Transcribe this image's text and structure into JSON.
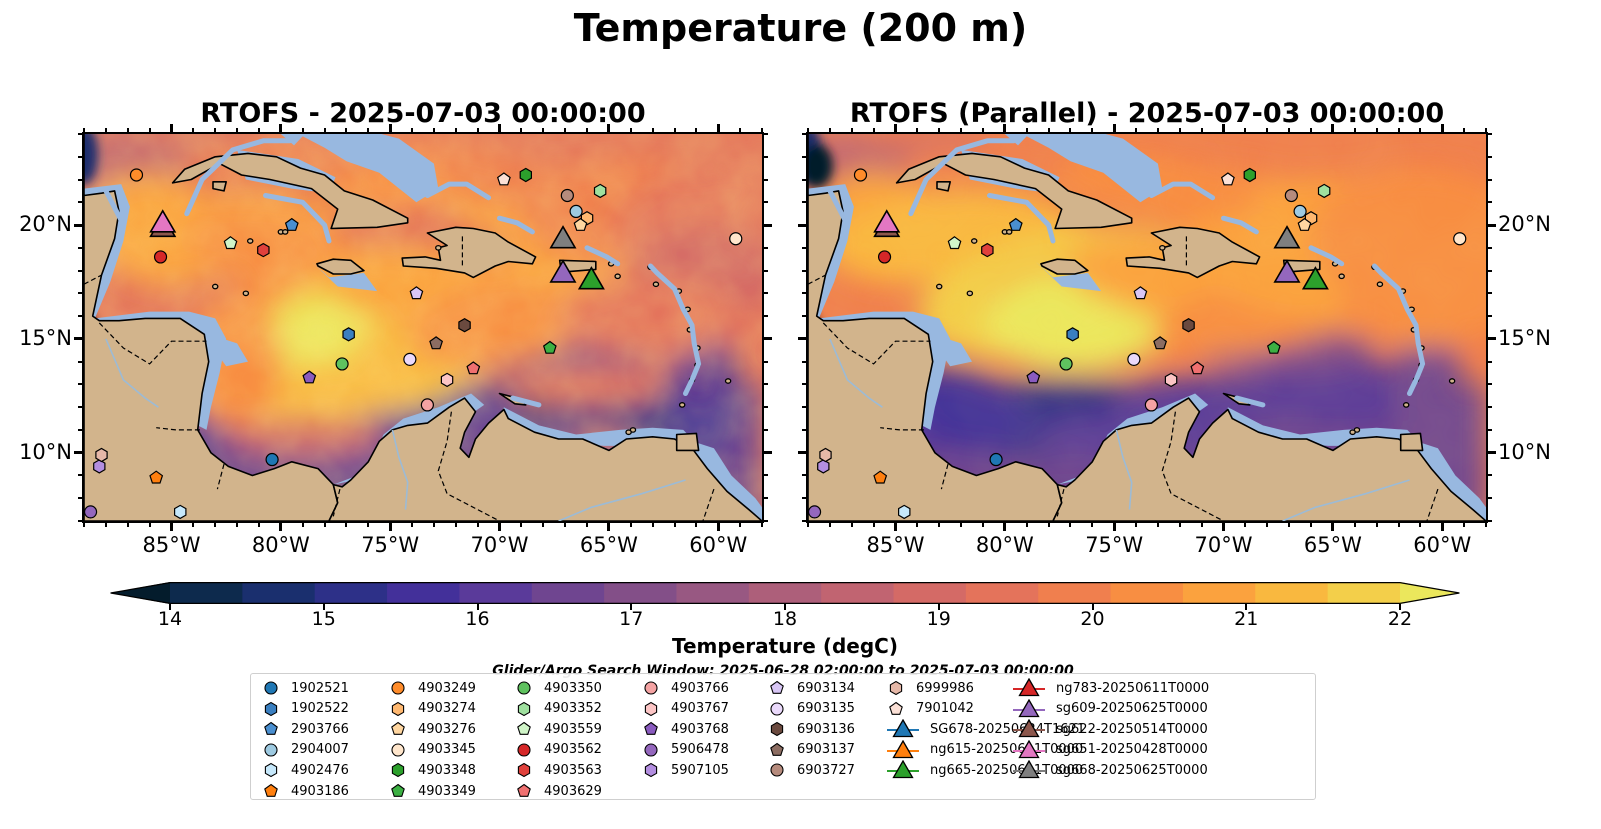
{
  "figure": {
    "title": "Temperature (200 m)",
    "panels": [
      {
        "title": "RTOFS - 2025-07-03 00:00:00"
      },
      {
        "title": "RTOFS (Parallel) - 2025-07-03 00:00:00"
      }
    ],
    "axes": {
      "lon_ticks": [
        "85°W",
        "80°W",
        "75°W",
        "70°W",
        "65°W",
        "60°W"
      ],
      "lon_values": [
        -85,
        -80,
        -75,
        -70,
        -65,
        -60
      ],
      "lat_ticks": [
        "20°N",
        "15°N",
        "10°N"
      ],
      "lat_values": [
        20,
        15,
        10
      ],
      "lon_range": [
        -89,
        -58
      ],
      "lat_range": [
        7,
        24
      ]
    },
    "colorbar": {
      "label": "Temperature (degC)",
      "ticks": [
        "14",
        "15",
        "16",
        "17",
        "18",
        "19",
        "20",
        "21",
        "22"
      ],
      "range": [
        14,
        22
      ],
      "extend": "both",
      "colormap": [
        "#041c2c",
        "#0d2a4d",
        "#1a2f6e",
        "#2d3088",
        "#43309a",
        "#5a3a9a",
        "#6f4590",
        "#834f88",
        "#985882",
        "#ad5f7a",
        "#c16471",
        "#d46a66",
        "#e4735b",
        "#f07f4e",
        "#f88e42",
        "#fba23e",
        "#f9b83f",
        "#f3cf4a",
        "#ebe75c"
      ],
      "land_color": "#d2b48c",
      "shallow_color": "#98b8e0"
    },
    "search_window": "Glider/Argo Search Window: 2025-06-28 02:00:00 to 2025-07-03 00:00:00"
  },
  "legend": [
    {
      "label": "1902521",
      "shape": "circle",
      "color": "#1f77b4"
    },
    {
      "label": "1902522",
      "shape": "hexagon",
      "color": "#3a7fc0"
    },
    {
      "label": "2903766",
      "shape": "pentagon",
      "color": "#4a8fd0"
    },
    {
      "label": "2904007",
      "shape": "circle",
      "color": "#9ecae1"
    },
    {
      "label": "4902476",
      "shape": "hexagon",
      "color": "#c6e8fb"
    },
    {
      "label": "4903186",
      "shape": "pentagon",
      "color": "#ff7f0e"
    },
    {
      "label": "4903249",
      "shape": "circle",
      "color": "#ff8c2a"
    },
    {
      "label": "4903274",
      "shape": "hexagon",
      "color": "#ffb870"
    },
    {
      "label": "4903276",
      "shape": "pentagon",
      "color": "#ffd6a0"
    },
    {
      "label": "4903345",
      "shape": "circle",
      "color": "#ffe6cc"
    },
    {
      "label": "4903348",
      "shape": "hexagon",
      "color": "#2ca02c"
    },
    {
      "label": "4903349",
      "shape": "pentagon",
      "color": "#3cb043"
    },
    {
      "label": "4903350",
      "shape": "circle",
      "color": "#5fc25f"
    },
    {
      "label": "4903352",
      "shape": "hexagon",
      "color": "#9fe09f"
    },
    {
      "label": "4903559",
      "shape": "pentagon",
      "color": "#d0f5c8"
    },
    {
      "label": "4903562",
      "shape": "circle",
      "color": "#d62728"
    },
    {
      "label": "4903563",
      "shape": "hexagon",
      "color": "#e0413c"
    },
    {
      "label": "4903629",
      "shape": "pentagon",
      "color": "#f07070"
    },
    {
      "label": "4903766",
      "shape": "circle",
      "color": "#f4a3a3"
    },
    {
      "label": "4903767",
      "shape": "hexagon",
      "color": "#fcc5c5"
    },
    {
      "label": "4903768",
      "shape": "pentagon",
      "color": "#8a5bbf"
    },
    {
      "label": "5906478",
      "shape": "circle",
      "color": "#9467bd"
    },
    {
      "label": "5907105",
      "shape": "hexagon",
      "color": "#b38ee0"
    },
    {
      "label": "6903134",
      "shape": "pentagon",
      "color": "#d8c6f5"
    },
    {
      "label": "6903135",
      "shape": "circle",
      "color": "#ead9fb"
    },
    {
      "label": "6903136",
      "shape": "hexagon",
      "color": "#6b4a3f"
    },
    {
      "label": "6903137",
      "shape": "pentagon",
      "color": "#8c6d62"
    },
    {
      "label": "6903727",
      "shape": "circle",
      "color": "#b68b7d"
    },
    {
      "label": "6999986",
      "shape": "hexagon",
      "color": "#e6b8a8"
    },
    {
      "label": "7901042",
      "shape": "pentagon",
      "color": "#fbe0d6"
    },
    {
      "label": "SG678-20250624T1621",
      "shape": "triangle",
      "color": "#1f77b4"
    },
    {
      "label": "ng615-20250611T0000",
      "shape": "triangle",
      "color": "#ff7f0e"
    },
    {
      "label": "ng665-20250611T0000",
      "shape": "triangle",
      "color": "#2ca02c"
    },
    {
      "label": "ng783-20250611T0000",
      "shape": "triangle",
      "color": "#d62728"
    },
    {
      "label": "sg609-20250625T0000",
      "shape": "triangle",
      "color": "#9467bd"
    },
    {
      "label": "sg622-20250514T0000",
      "shape": "triangle",
      "color": "#8c564b"
    },
    {
      "label": "sg651-20250428T0000",
      "shape": "triangle",
      "color": "#e377c2"
    },
    {
      "label": "sg668-20250625T0000",
      "shape": "triangle",
      "color": "#7f7f7f"
    }
  ],
  "observations": [
    {
      "id": "1902521",
      "lon": -80.4,
      "lat": 9.7
    },
    {
      "id": "1902522",
      "lon": -76.9,
      "lat": 15.2
    },
    {
      "id": "2903766",
      "lon": -79.5,
      "lat": 20.0
    },
    {
      "id": "2904007",
      "lon": -66.5,
      "lat": 20.6
    },
    {
      "id": "4902476",
      "lon": -84.6,
      "lat": 7.4
    },
    {
      "id": "4903186",
      "lon": -85.7,
      "lat": 8.9
    },
    {
      "id": "4903249",
      "lon": -86.6,
      "lat": 22.2
    },
    {
      "id": "4903274",
      "lon": -66.0,
      "lat": 20.3
    },
    {
      "id": "4903276",
      "lon": -66.3,
      "lat": 20.0
    },
    {
      "id": "4903345",
      "lon": -59.2,
      "lat": 19.4
    },
    {
      "id": "4903348",
      "lon": -68.8,
      "lat": 22.2
    },
    {
      "id": "4903349",
      "lon": -67.7,
      "lat": 14.6
    },
    {
      "id": "4903350",
      "lon": -77.2,
      "lat": 13.9
    },
    {
      "id": "4903352",
      "lon": -65.4,
      "lat": 21.5
    },
    {
      "id": "4903559",
      "lon": -82.3,
      "lat": 19.2
    },
    {
      "id": "4903562",
      "lon": -85.5,
      "lat": 18.6
    },
    {
      "id": "4903563",
      "lon": -80.8,
      "lat": 18.9
    },
    {
      "id": "4903629",
      "lon": -71.2,
      "lat": 13.7
    },
    {
      "id": "4903766",
      "lon": -73.3,
      "lat": 12.1
    },
    {
      "id": "4903767",
      "lon": -72.4,
      "lat": 13.2
    },
    {
      "id": "4903768",
      "lon": -78.7,
      "lat": 13.3
    },
    {
      "id": "5906478",
      "lon": -88.7,
      "lat": 7.4
    },
    {
      "id": "5907105",
      "lon": -88.3,
      "lat": 9.4
    },
    {
      "id": "6903134",
      "lon": -73.8,
      "lat": 17.0
    },
    {
      "id": "6903135",
      "lon": -74.1,
      "lat": 14.1
    },
    {
      "id": "6903136",
      "lon": -71.6,
      "lat": 15.6
    },
    {
      "id": "6903137",
      "lon": -72.9,
      "lat": 14.8
    },
    {
      "id": "6903727",
      "lon": -66.9,
      "lat": 21.3
    },
    {
      "id": "6999986",
      "lon": -88.2,
      "lat": 9.9
    },
    {
      "id": "7901042",
      "lon": -69.8,
      "lat": 22.0
    },
    {
      "id": "sg622-20250514T0000",
      "lon": -85.4,
      "lat": 19.9,
      "glider": true
    },
    {
      "id": "sg651-20250428T0000",
      "lon": -85.4,
      "lat": 20.1,
      "glider": true
    },
    {
      "id": "sg668-20250625T0000",
      "lon": -67.1,
      "lat": 19.4,
      "glider": true
    },
    {
      "id": "sg609-20250625T0000",
      "lon": -67.1,
      "lat": 17.9,
      "glider": true
    },
    {
      "id": "ng665-20250611T0000",
      "lon": -65.8,
      "lat": 17.6,
      "glider": true
    }
  ]
}
